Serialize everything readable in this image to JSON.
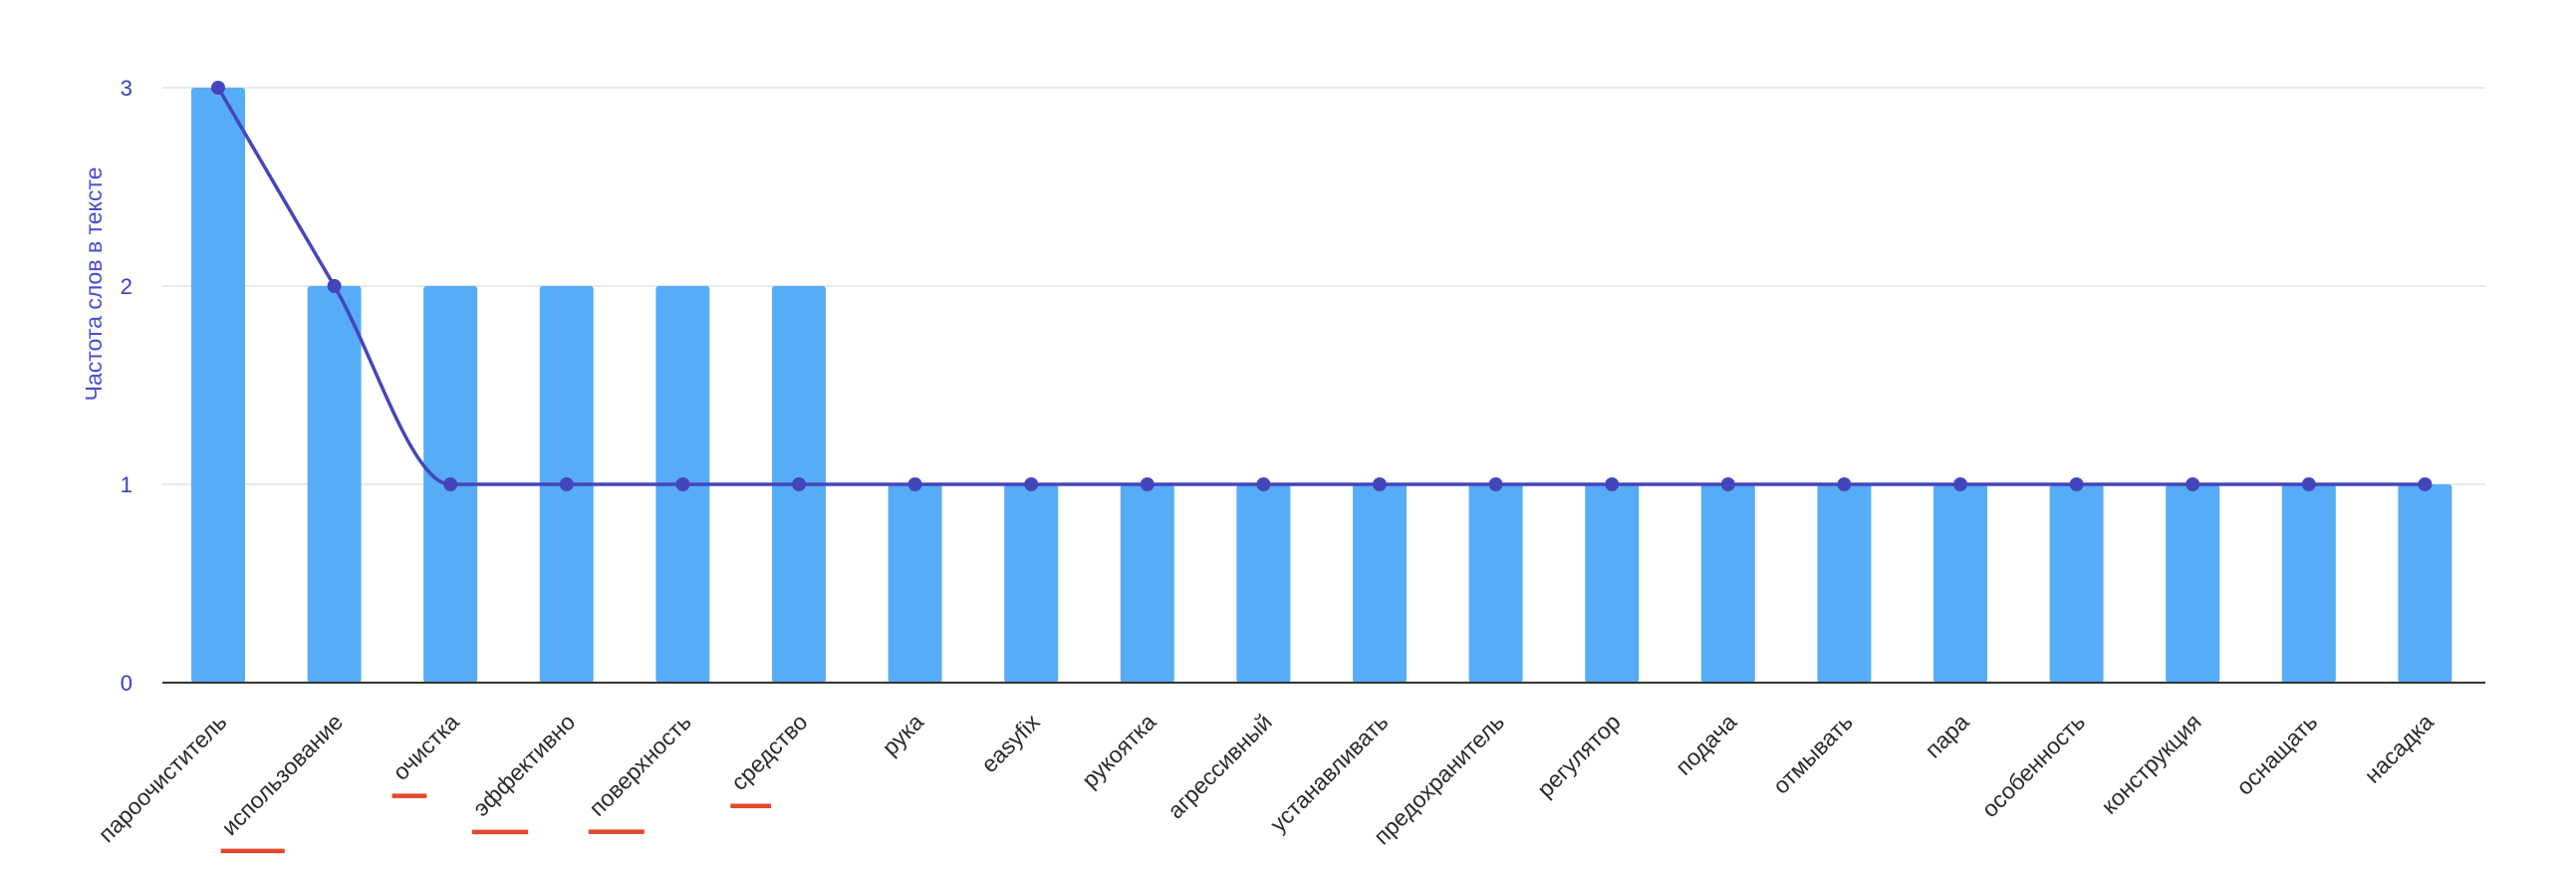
{
  "chart_data": {
    "type": "bar",
    "title": "",
    "xlabel": "",
    "ylabel": "Частота слов в тексте",
    "ylim": [
      0,
      3
    ],
    "yticks": [
      0,
      1,
      2,
      3
    ],
    "grid": true,
    "categories": [
      "пароочиститель",
      "использование",
      "очистка",
      "эффективно",
      "поверхность",
      "средство",
      "рука",
      "easyfix",
      "рукоятка",
      "агрессивный",
      "устанавливать",
      "предохранитель",
      "регулятор",
      "подача",
      "отмывать",
      "пара",
      "особенность",
      "конструкция",
      "оснащать",
      "насадка"
    ],
    "series": [
      {
        "kind": "bar",
        "values": [
          3,
          2,
          2,
          2,
          2,
          2,
          1,
          1,
          1,
          1,
          1,
          1,
          1,
          1,
          1,
          1,
          1,
          1,
          1,
          1
        ],
        "color": "#56acf6"
      },
      {
        "kind": "line",
        "values": [
          3,
          2,
          1,
          1,
          1,
          1,
          1,
          1,
          1,
          1,
          1,
          1,
          1,
          1,
          1,
          1,
          1,
          1,
          1,
          1
        ],
        "color": "#4545bb"
      }
    ],
    "underlined_categories": [
      "использование",
      "очистка",
      "эффективно",
      "поверхность",
      "средство"
    ],
    "underline_color": "#e4472a",
    "axis_color": "#333333",
    "grid_color": "#e3e3e3"
  }
}
